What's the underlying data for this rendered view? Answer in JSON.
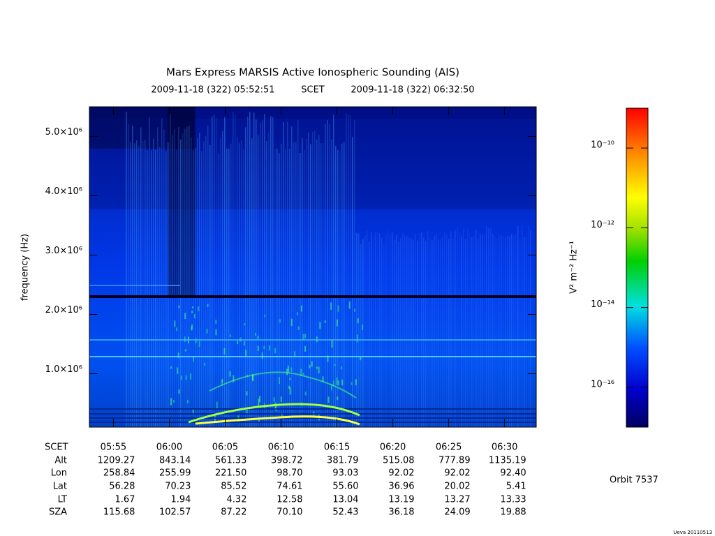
{
  "chart_data": {
    "type": "spectrogram",
    "title": "Mars Express MARSIS Active Ionospheric Sounding (AIS)",
    "start": "2009-11-18 (322) 05:52:51",
    "time_system": "SCET",
    "end": "2009-11-18 (322) 06:32:50",
    "ylabel": "frequency (Hz)",
    "ylim": [
      100000,
      5500000
    ],
    "yticks": [
      {
        "value": 1000000,
        "label": "1.0×10⁶"
      },
      {
        "value": 2000000,
        "label": "2.0×10⁶"
      },
      {
        "value": 3000000,
        "label": "3.0×10⁶"
      },
      {
        "value": 4000000,
        "label": "4.0×10⁶"
      },
      {
        "value": 5000000,
        "label": "5.0×10⁶"
      }
    ],
    "x": [
      "05:55",
      "06:00",
      "06:05",
      "06:10",
      "06:15",
      "06:20",
      "06:25",
      "06:30"
    ],
    "ephemeris": {
      "labels": [
        "SCET",
        "Alt",
        "Lon",
        "Lat",
        "LT",
        "SZA"
      ],
      "rows": [
        [
          "1209.27",
          "843.14",
          "561.33",
          "398.72",
          "381.79",
          "515.08",
          "777.89",
          "1135.19"
        ],
        [
          "258.84",
          "255.99",
          "221.50",
          "98.70",
          "93.03",
          "92.02",
          "92.02",
          "92.40"
        ],
        [
          "56.28",
          "70.23",
          "85.52",
          "74.61",
          "55.60",
          "36.96",
          "20.02",
          "5.41"
        ],
        [
          "1.67",
          "1.94",
          "4.32",
          "12.58",
          "13.04",
          "13.19",
          "13.27",
          "13.33"
        ],
        [
          "115.68",
          "102.57",
          "87.22",
          "70.10",
          "52.43",
          "36.18",
          "24.09",
          "19.88"
        ]
      ]
    },
    "colorbar": {
      "label": "V² m⁻² Hz⁻¹",
      "log": true,
      "clim": [
        1e-17,
        1e-09
      ],
      "ticks": [
        {
          "value": 1e-10,
          "label": "10⁻¹⁰"
        },
        {
          "value": 1e-12,
          "label": "10⁻¹²"
        },
        {
          "value": 1e-14,
          "label": "10⁻¹⁴"
        },
        {
          "value": 1e-16,
          "label": "10⁻¹⁶"
        }
      ]
    },
    "orbit": "Orbit 7537",
    "credit": "Ueva 20110513"
  }
}
